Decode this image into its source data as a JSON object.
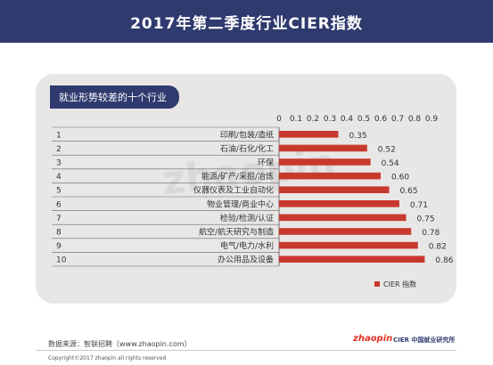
{
  "header": {
    "title": "2017年第二季度行业CIER指数"
  },
  "panel": {
    "tag": "就业形势较差的十个行业"
  },
  "watermark": "zhaopin",
  "footer": {
    "source": "数据来源：智联招聘（www.zhaopin.com）",
    "copyright": "Copyright©2017 zhaopin all rights reserved",
    "logo_zhaopin": "zhaopin",
    "logo_cier": "CIER 中国就业研究所"
  },
  "colors": {
    "bar": "#c8392d",
    "header_bg": "#2f3a6f",
    "panel_bg": "#e9e6e6"
  },
  "chart_data": {
    "type": "bar",
    "orientation": "horizontal",
    "ranks": [
      "1",
      "2",
      "3",
      "4",
      "5",
      "6",
      "7",
      "8",
      "9",
      "10"
    ],
    "categories": [
      "印刷/包装/造纸",
      "石油/石化/化工",
      "环保",
      "能源/矿产/采掘/冶炼",
      "仪器仪表及工业自动化",
      "物业管理/商业中心",
      "检验/检测/认证",
      "航空/航天研究与制造",
      "电气/电力/水利",
      "办公用品及设备"
    ],
    "values": [
      0.35,
      0.52,
      0.54,
      0.6,
      0.65,
      0.71,
      0.75,
      0.78,
      0.82,
      0.86
    ],
    "value_labels": [
      "0.35",
      "0.52",
      "0.54",
      "0.60",
      "0.65",
      "0.71",
      "0.75",
      "0.78",
      "0.82",
      "0.86"
    ],
    "ticks": [
      "0",
      "0.1",
      "0.2",
      "0.3",
      "0.4",
      "0.5",
      "0.6",
      "0.7",
      "0.8",
      "0.9"
    ],
    "xlim": [
      0,
      0.9
    ],
    "legend": {
      "label": "CIER 指数",
      "position": "bottom-right"
    }
  }
}
